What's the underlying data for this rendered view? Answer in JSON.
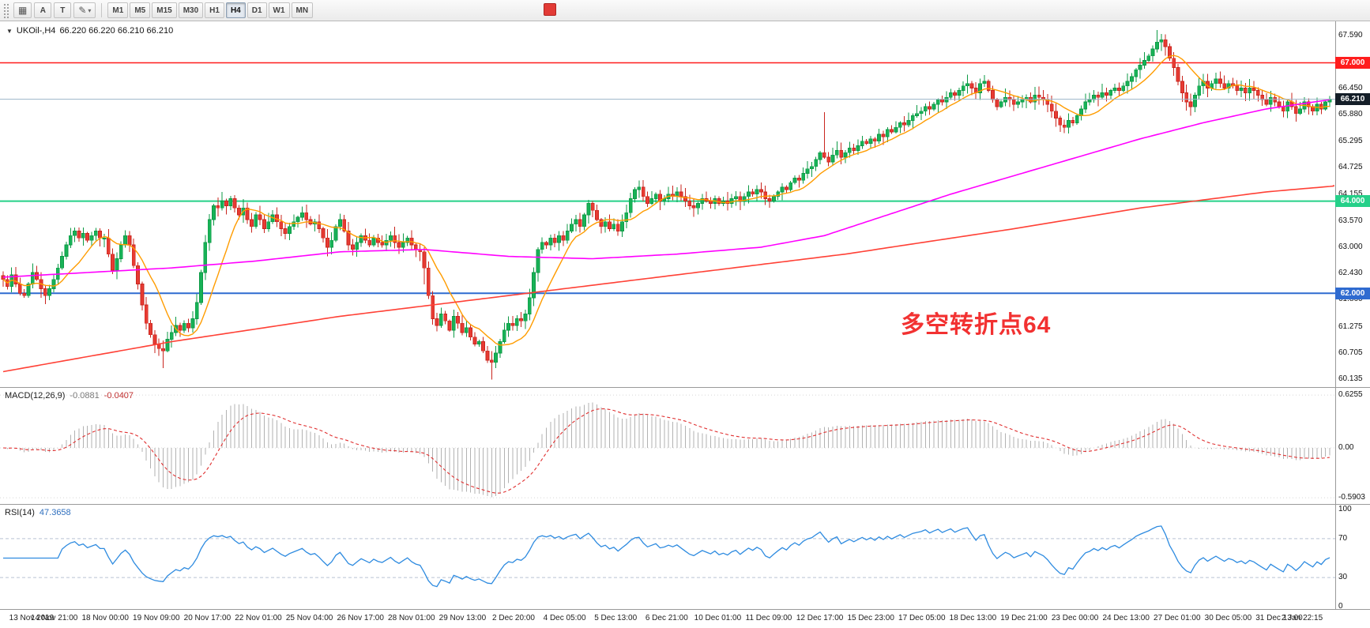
{
  "toolbar": {
    "tools": [
      {
        "label": "A"
      },
      {
        "label": "T"
      }
    ],
    "grid_icon": "▦",
    "draw_icon": "✎",
    "caret_icon": "▾",
    "timeframes": [
      "M1",
      "M5",
      "M15",
      "M30",
      "H1",
      "H4",
      "D1",
      "W1",
      "MN"
    ],
    "active_timeframe": "H4"
  },
  "chart": {
    "symbol_title": "UKOil-,H4",
    "ohlc_text": "66.220 66.220 66.210 66.210",
    "dropdown_icon": "▼",
    "price_ticks": [
      "67.590",
      "66.450",
      "65.880",
      "65.295",
      "64.725",
      "64.155",
      "63.570",
      "63.000",
      "62.430",
      "61.860",
      "61.275",
      "60.705",
      "60.135"
    ],
    "current_price": {
      "label": "66.210",
      "value": 66.21
    },
    "hlines": [
      {
        "label": "67.000",
        "value": 67.0,
        "color": "#ff1d1d"
      },
      {
        "label": "64.000",
        "value": 64.0,
        "color": "#25d089"
      },
      {
        "label": "62.000",
        "value": 62.0,
        "color": "#2f6bd0"
      }
    ],
    "annotation": {
      "text": "多空转折点64",
      "color": "#f23131"
    }
  },
  "macd": {
    "name": "MACD(12,26,9)",
    "main_value": "-0.0881",
    "signal_value": "-0.0407",
    "ticks": [
      {
        "label": "0.6255",
        "value": 0.6255
      },
      {
        "label": "0.00",
        "value": 0.0
      },
      {
        "label": "-0.5903",
        "value": -0.5903
      }
    ]
  },
  "rsi": {
    "name": "RSI(14)",
    "value": "47.3658",
    "ticks": [
      {
        "label": "100",
        "value": 100
      },
      {
        "label": "70",
        "value": 70
      },
      {
        "label": "30",
        "value": 30
      },
      {
        "label": "0",
        "value": 0
      }
    ]
  },
  "time_axis": [
    "13 Nov 2019",
    "14 Nov 21:00",
    "18 Nov 00:00",
    "19 Nov 09:00",
    "20 Nov 17:00",
    "22 Nov 01:00",
    "25 Nov 04:00",
    "26 Nov 17:00",
    "28 Nov 01:00",
    "29 Nov 13:00",
    "2 Dec 20:00",
    "4 Dec 05:00",
    "5 Dec 13:00",
    "6 Dec 21:00",
    "10 Dec 01:00",
    "11 Dec 09:00",
    "12 Dec 17:00",
    "15 Dec 23:00",
    "17 Dec 05:00",
    "18 Dec 13:00",
    "19 Dec 21:00",
    "23 Dec 00:00",
    "24 Dec 13:00",
    "27 Dec 01:00",
    "30 Dec 05:00",
    "31 Dec 13:00",
    "2 Jan 22:15"
  ],
  "colors": {
    "candle_up": "#18b257",
    "candle_up_stroke": "#0c9a45",
    "candle_down": "#e73b33",
    "candle_down_stroke": "#c9251e",
    "ma_fast": "#ff9c00",
    "ma_mid": "#ff00ff",
    "ma_slow": "#ff4136",
    "current_price_line": "#9db4c9",
    "current_price_badge": "#141e28",
    "macd_hist": "#b2b2b2",
    "macd_signal": "#e03030",
    "rsi_line": "#2e8be0",
    "level_dash": "#b9c4d4",
    "separator": "#9a9a9a",
    "grid_dot": "#d8d8d8"
  },
  "chart_data": {
    "type": "candlestick",
    "symbol": "UKOil-",
    "timeframe": "H4",
    "ylim": [
      59.95,
      67.9
    ],
    "closes": [
      62.3,
      62.15,
      62.4,
      62.2,
      62.0,
      61.95,
      62.2,
      62.45,
      62.3,
      62.1,
      61.95,
      62.1,
      62.3,
      62.55,
      62.8,
      63.05,
      63.25,
      63.35,
      63.2,
      63.3,
      63.15,
      63.25,
      63.35,
      63.2,
      63.2,
      62.85,
      62.5,
      62.75,
      63.05,
      63.25,
      63.05,
      62.6,
      62.2,
      61.75,
      61.35,
      61.1,
      60.9,
      60.8,
      60.75,
      61.0,
      61.15,
      61.3,
      61.2,
      61.35,
      61.25,
      61.45,
      61.8,
      62.45,
      63.1,
      63.6,
      63.9,
      63.85,
      64.0,
      63.9,
      64.05,
      63.85,
      63.7,
      63.85,
      63.6,
      63.45,
      63.7,
      63.6,
      63.4,
      63.55,
      63.7,
      63.55,
      63.4,
      63.3,
      63.45,
      63.55,
      63.65,
      63.75,
      63.6,
      63.5,
      63.55,
      63.4,
      63.2,
      63.0,
      63.15,
      63.45,
      63.6,
      63.35,
      63.05,
      62.95,
      63.1,
      63.25,
      63.15,
      63.05,
      63.2,
      63.1,
      63.05,
      63.15,
      63.25,
      63.1,
      63.0,
      63.1,
      63.2,
      63.05,
      62.95,
      62.9,
      62.55,
      61.95,
      61.45,
      61.3,
      61.55,
      61.4,
      61.2,
      61.5,
      61.35,
      61.15,
      61.25,
      61.05,
      60.9,
      60.95,
      60.75,
      60.55,
      60.5,
      60.7,
      60.95,
      61.2,
      61.35,
      61.3,
      61.45,
      61.4,
      61.55,
      61.9,
      62.45,
      62.95,
      63.1,
      63.05,
      63.2,
      63.1,
      63.25,
      63.15,
      63.35,
      63.5,
      63.6,
      63.45,
      63.7,
      63.95,
      63.8,
      63.6,
      63.45,
      63.55,
      63.4,
      63.5,
      63.35,
      63.55,
      63.75,
      64.05,
      64.25,
      64.3,
      64.1,
      63.95,
      64.05,
      64.15,
      64.0,
      64.05,
      64.15,
      64.1,
      64.2,
      64.1,
      64.0,
      63.9,
      63.85,
      63.95,
      64.05,
      64.0,
      63.95,
      64.05,
      63.95,
      64.0,
      63.95,
      64.05,
      64.1,
      64.0,
      64.1,
      64.2,
      64.15,
      64.25,
      64.2,
      64.05,
      64.0,
      64.1,
      64.2,
      64.3,
      64.25,
      64.4,
      64.5,
      64.45,
      64.6,
      64.7,
      64.75,
      64.9,
      65.05,
      64.95,
      64.85,
      65.0,
      65.1,
      64.95,
      65.05,
      65.15,
      65.1,
      65.2,
      65.3,
      65.25,
      65.35,
      65.3,
      65.45,
      65.4,
      65.55,
      65.5,
      65.6,
      65.7,
      65.65,
      65.75,
      65.85,
      65.9,
      65.95,
      66.05,
      66.0,
      66.1,
      66.2,
      66.15,
      66.25,
      66.35,
      66.3,
      66.4,
      66.5,
      66.55,
      66.45,
      66.35,
      66.55,
      66.6,
      66.4,
      66.2,
      66.05,
      66.15,
      66.25,
      66.2,
      66.1,
      66.15,
      66.2,
      66.25,
      66.15,
      66.3,
      66.25,
      66.2,
      66.1,
      65.95,
      65.8,
      65.65,
      65.6,
      65.75,
      65.7,
      65.85,
      66.0,
      66.15,
      66.2,
      66.3,
      66.25,
      66.35,
      66.3,
      66.4,
      66.45,
      66.4,
      66.5,
      66.6,
      66.7,
      66.85,
      66.95,
      67.05,
      67.15,
      67.3,
      67.45,
      67.5,
      67.35,
      67.1,
      66.9,
      66.6,
      66.35,
      66.15,
      66.05,
      66.3,
      66.5,
      66.6,
      66.45,
      66.55,
      66.65,
      66.55,
      66.45,
      66.55,
      66.5,
      66.4,
      66.45,
      66.35,
      66.45,
      66.4,
      66.3,
      66.2,
      66.1,
      66.25,
      66.15,
      66.05,
      65.95,
      66.15,
      66.05,
      65.9,
      66.0,
      66.15,
      66.05,
      65.95,
      66.1,
      66.0,
      66.15,
      66.21
    ],
    "spike_wicks": [
      [
        195,
        0.7,
        0.0
      ],
      [
        116,
        0.05,
        0.32
      ],
      [
        100,
        0.0,
        0.28
      ],
      [
        274,
        0.1,
        0.0
      ],
      [
        38,
        0.0,
        0.22
      ]
    ],
    "ma_fast_period": 10,
    "ma_mid_anchors": [
      [
        0,
        62.35
      ],
      [
        20,
        62.45
      ],
      [
        40,
        62.55
      ],
      [
        60,
        62.7
      ],
      [
        80,
        62.9
      ],
      [
        100,
        62.95
      ],
      [
        120,
        62.8
      ],
      [
        140,
        62.75
      ],
      [
        160,
        62.85
      ],
      [
        180,
        63.0
      ],
      [
        195,
        63.25
      ],
      [
        210,
        63.7
      ],
      [
        225,
        64.15
      ],
      [
        240,
        64.55
      ],
      [
        255,
        64.95
      ],
      [
        270,
        65.35
      ],
      [
        285,
        65.7
      ],
      [
        300,
        66.0
      ],
      [
        315,
        66.2
      ]
    ],
    "ma_slow_anchors": [
      [
        0,
        60.3
      ],
      [
        40,
        60.95
      ],
      [
        80,
        61.5
      ],
      [
        120,
        61.95
      ],
      [
        160,
        62.4
      ],
      [
        200,
        62.85
      ],
      [
        240,
        63.4
      ],
      [
        270,
        63.85
      ],
      [
        300,
        64.2
      ],
      [
        319,
        64.35
      ]
    ],
    "macd_params": [
      12,
      26,
      9
    ],
    "rsi_period": 14,
    "hline_values": [
      67.0,
      64.0,
      62.0
    ],
    "current_price": 66.21
  }
}
